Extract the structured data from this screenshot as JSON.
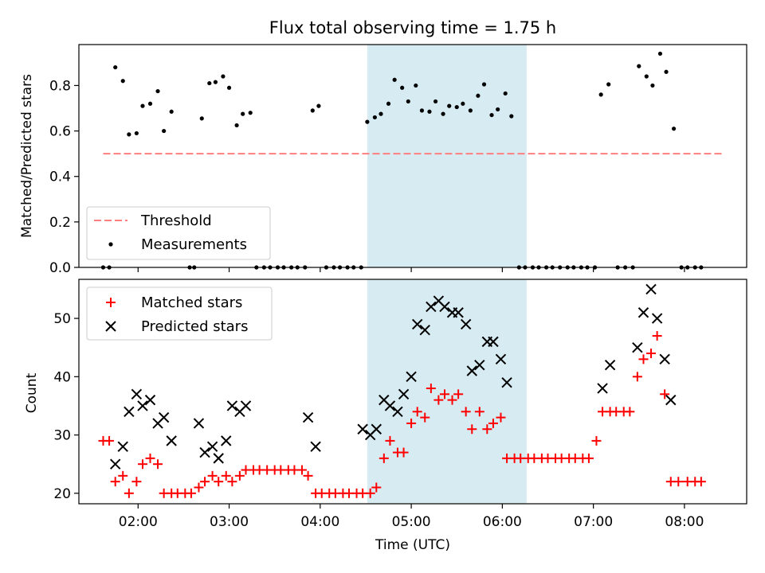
{
  "title": "Flux total observing time = 1.75 h",
  "chart_data": [
    {
      "type": "scatter",
      "panel": "top",
      "ylabel": "Matched/Predicted stars",
      "xlabel": "",
      "ylim": [
        0,
        0.98
      ],
      "yticks": [
        0.0,
        0.2,
        0.4,
        0.6,
        0.8
      ],
      "ytick_labels": [
        "0.0",
        "0.2",
        "0.4",
        "0.6",
        "0.8"
      ],
      "legend_position": "lower-left",
      "shaded_interval": {
        "start": "04:31",
        "end": "06:16",
        "color": "#add8e6"
      },
      "threshold": {
        "name": "Threshold",
        "y": 0.5,
        "x_start": "01:37",
        "x_end": "08:25",
        "color": "#ff7f7f",
        "style": "dashed"
      },
      "series": [
        {
          "name": "Measurements",
          "color": "#000000",
          "marker": "dot",
          "points": [
            [
              "01:37",
              0.0
            ],
            [
              "01:41",
              0.0
            ],
            [
              "01:45",
              0.88
            ],
            [
              "01:50",
              0.82
            ],
            [
              "01:54",
              0.585
            ],
            [
              "01:59",
              0.59
            ],
            [
              "02:03",
              0.71
            ],
            [
              "02:08",
              0.72
            ],
            [
              "02:13",
              0.775
            ],
            [
              "02:17",
              0.6
            ],
            [
              "02:22",
              0.685
            ],
            [
              "02:34",
              0.0
            ],
            [
              "02:37",
              0.0
            ],
            [
              "02:42",
              0.655
            ],
            [
              "02:47",
              0.81
            ],
            [
              "02:51",
              0.815
            ],
            [
              "02:56",
              0.84
            ],
            [
              "03:00",
              0.79
            ],
            [
              "03:05",
              0.625
            ],
            [
              "03:09",
              0.675
            ],
            [
              "03:14",
              0.68
            ],
            [
              "03:18",
              0.0
            ],
            [
              "03:23",
              0.0
            ],
            [
              "03:27",
              0.0
            ],
            [
              "03:32",
              0.0
            ],
            [
              "03:36",
              0.0
            ],
            [
              "03:41",
              0.0
            ],
            [
              "03:45",
              0.0
            ],
            [
              "03:50",
              0.0
            ],
            [
              "03:55",
              0.69
            ],
            [
              "03:59",
              0.71
            ],
            [
              "04:04",
              0.0
            ],
            [
              "04:09",
              0.0
            ],
            [
              "04:13",
              0.0
            ],
            [
              "04:18",
              0.0
            ],
            [
              "04:22",
              0.0
            ],
            [
              "04:27",
              0.0
            ],
            [
              "04:31",
              0.64
            ],
            [
              "04:36",
              0.66
            ],
            [
              "04:40",
              0.675
            ],
            [
              "04:45",
              0.72
            ],
            [
              "04:49",
              0.825
            ],
            [
              "04:54",
              0.79
            ],
            [
              "04:58",
              0.73
            ],
            [
              "05:03",
              0.8
            ],
            [
              "05:07",
              0.69
            ],
            [
              "05:12",
              0.685
            ],
            [
              "05:16",
              0.73
            ],
            [
              "05:21",
              0.675
            ],
            [
              "05:25",
              0.71
            ],
            [
              "05:30",
              0.705
            ],
            [
              "05:34",
              0.72
            ],
            [
              "05:39",
              0.69
            ],
            [
              "05:44",
              0.755
            ],
            [
              "05:48",
              0.805
            ],
            [
              "05:53",
              0.67
            ],
            [
              "05:57",
              0.695
            ],
            [
              "06:02",
              0.765
            ],
            [
              "06:06",
              0.665
            ],
            [
              "06:11",
              0.0
            ],
            [
              "06:15",
              0.0
            ],
            [
              "06:20",
              0.0
            ],
            [
              "06:24",
              0.0
            ],
            [
              "06:29",
              0.0
            ],
            [
              "06:33",
              0.0
            ],
            [
              "06:38",
              0.0
            ],
            [
              "06:43",
              0.0
            ],
            [
              "06:47",
              0.0
            ],
            [
              "06:52",
              0.0
            ],
            [
              "06:56",
              0.0
            ],
            [
              "07:01",
              0.0
            ],
            [
              "07:05",
              0.76
            ],
            [
              "07:10",
              0.805
            ],
            [
              "07:16",
              0.0
            ],
            [
              "07:21",
              0.0
            ],
            [
              "07:26",
              0.0
            ],
            [
              "07:30",
              0.885
            ],
            [
              "07:35",
              0.84
            ],
            [
              "07:39",
              0.8
            ],
            [
              "07:44",
              0.94
            ],
            [
              "07:48",
              0.86
            ],
            [
              "07:53",
              0.61
            ],
            [
              "07:58",
              0.0
            ],
            [
              "08:02",
              0.0
            ],
            [
              "08:07",
              0.0
            ],
            [
              "08:11",
              0.0
            ]
          ]
        }
      ]
    },
    {
      "type": "scatter",
      "panel": "bottom",
      "xlabel": "Time (UTC)",
      "ylabel": "Count",
      "ylim": [
        18.2,
        56.7
      ],
      "yticks": [
        20,
        30,
        40,
        50
      ],
      "ytick_labels": [
        "20",
        "30",
        "40",
        "50"
      ],
      "xticks": [
        "02:00",
        "03:00",
        "04:00",
        "05:00",
        "06:00",
        "07:00",
        "08:00"
      ],
      "xlim": [
        "01:21",
        "08:41"
      ],
      "legend_position": "upper-left",
      "shaded_interval": {
        "start": "04:31",
        "end": "06:16",
        "color": "#add8e6"
      },
      "series": [
        {
          "name": "Matched stars",
          "color": "#ff0000",
          "marker": "plus",
          "points": [
            [
              "01:37",
              29
            ],
            [
              "01:41",
              29
            ],
            [
              "01:45",
              22
            ],
            [
              "01:50",
              23
            ],
            [
              "01:54",
              20
            ],
            [
              "01:59",
              22
            ],
            [
              "02:03",
              25
            ],
            [
              "02:08",
              26
            ],
            [
              "02:13",
              25
            ],
            [
              "02:17",
              20
            ],
            [
              "02:22",
              20
            ],
            [
              "02:26",
              20
            ],
            [
              "02:31",
              20
            ],
            [
              "02:35",
              20
            ],
            [
              "02:40",
              21
            ],
            [
              "02:44",
              22
            ],
            [
              "02:49",
              23
            ],
            [
              "02:53",
              22
            ],
            [
              "02:58",
              23
            ],
            [
              "03:02",
              22
            ],
            [
              "03:07",
              23
            ],
            [
              "03:11",
              24
            ],
            [
              "03:16",
              24
            ],
            [
              "03:20",
              24
            ],
            [
              "03:25",
              24
            ],
            [
              "03:30",
              24
            ],
            [
              "03:34",
              24
            ],
            [
              "03:39",
              24
            ],
            [
              "03:43",
              24
            ],
            [
              "03:48",
              24
            ],
            [
              "03:52",
              23
            ],
            [
              "03:57",
              20
            ],
            [
              "04:01",
              20
            ],
            [
              "04:06",
              20
            ],
            [
              "04:10",
              20
            ],
            [
              "04:15",
              20
            ],
            [
              "04:19",
              20
            ],
            [
              "04:24",
              20
            ],
            [
              "04:28",
              20
            ],
            [
              "04:33",
              20
            ],
            [
              "04:37",
              21
            ],
            [
              "04:42",
              26
            ],
            [
              "04:46",
              29
            ],
            [
              "04:51",
              27
            ],
            [
              "04:55",
              27
            ],
            [
              "05:00",
              32
            ],
            [
              "05:04",
              34
            ],
            [
              "05:09",
              33
            ],
            [
              "05:13",
              38
            ],
            [
              "05:18",
              36
            ],
            [
              "05:22",
              37
            ],
            [
              "05:27",
              36
            ],
            [
              "05:31",
              37
            ],
            [
              "05:36",
              34
            ],
            [
              "05:40",
              31
            ],
            [
              "05:45",
              34
            ],
            [
              "05:50",
              31
            ],
            [
              "05:54",
              32
            ],
            [
              "05:59",
              33
            ],
            [
              "06:03",
              26
            ],
            [
              "06:08",
              26
            ],
            [
              "06:12",
              26
            ],
            [
              "06:17",
              26
            ],
            [
              "06:21",
              26
            ],
            [
              "06:26",
              26
            ],
            [
              "06:30",
              26
            ],
            [
              "06:35",
              26
            ],
            [
              "06:39",
              26
            ],
            [
              "06:44",
              26
            ],
            [
              "06:48",
              26
            ],
            [
              "06:53",
              26
            ],
            [
              "06:57",
              26
            ],
            [
              "07:02",
              29
            ],
            [
              "07:06",
              34
            ],
            [
              "07:11",
              34
            ],
            [
              "07:15",
              34
            ],
            [
              "07:20",
              34
            ],
            [
              "07:24",
              34
            ],
            [
              "07:29",
              40
            ],
            [
              "07:33",
              43
            ],
            [
              "07:38",
              44
            ],
            [
              "07:42",
              47
            ],
            [
              "07:47",
              37
            ],
            [
              "07:51",
              22
            ],
            [
              "07:56",
              22
            ],
            [
              "08:02",
              22
            ],
            [
              "08:07",
              22
            ],
            [
              "08:11",
              22
            ]
          ]
        },
        {
          "name": "Predicted stars",
          "color": "#000000",
          "marker": "x",
          "points": [
            [
              "01:45",
              25
            ],
            [
              "01:50",
              28
            ],
            [
              "01:54",
              34
            ],
            [
              "01:59",
              37
            ],
            [
              "02:03",
              35
            ],
            [
              "02:08",
              36
            ],
            [
              "02:13",
              32
            ],
            [
              "02:17",
              33
            ],
            [
              "02:22",
              29
            ],
            [
              "02:40",
              32
            ],
            [
              "02:44",
              27
            ],
            [
              "02:49",
              28
            ],
            [
              "02:53",
              26
            ],
            [
              "02:58",
              29
            ],
            [
              "03:02",
              35
            ],
            [
              "03:07",
              34
            ],
            [
              "03:11",
              35
            ],
            [
              "03:52",
              33
            ],
            [
              "03:57",
              28
            ],
            [
              "04:28",
              31
            ],
            [
              "04:33",
              30
            ],
            [
              "04:37",
              31
            ],
            [
              "04:42",
              36
            ],
            [
              "04:46",
              35
            ],
            [
              "04:51",
              34
            ],
            [
              "04:55",
              37
            ],
            [
              "05:00",
              40
            ],
            [
              "05:04",
              49
            ],
            [
              "05:09",
              48
            ],
            [
              "05:13",
              52
            ],
            [
              "05:18",
              53
            ],
            [
              "05:22",
              52
            ],
            [
              "05:27",
              51
            ],
            [
              "05:31",
              51
            ],
            [
              "05:36",
              49
            ],
            [
              "05:40",
              41
            ],
            [
              "05:45",
              42
            ],
            [
              "05:50",
              46
            ],
            [
              "05:54",
              46
            ],
            [
              "05:59",
              43
            ],
            [
              "06:03",
              39
            ],
            [
              "07:06",
              38
            ],
            [
              "07:11",
              42
            ],
            [
              "07:29",
              45
            ],
            [
              "07:33",
              51
            ],
            [
              "07:38",
              55
            ],
            [
              "07:42",
              50
            ],
            [
              "07:47",
              43
            ],
            [
              "07:51",
              36
            ]
          ]
        }
      ]
    }
  ]
}
